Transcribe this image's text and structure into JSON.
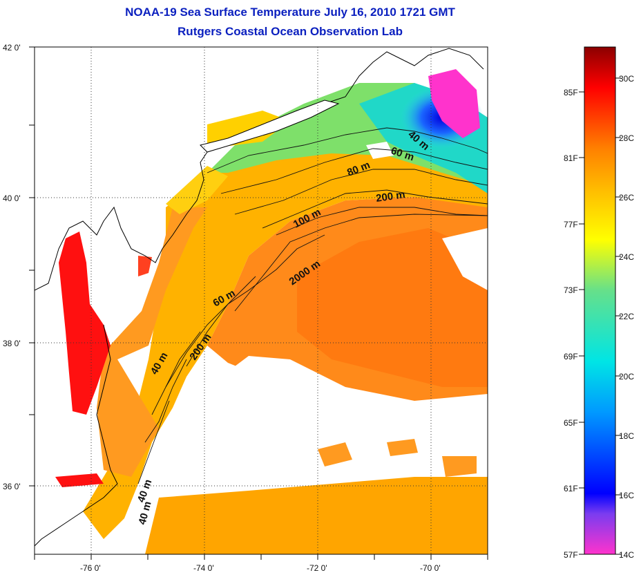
{
  "title": "NOAA-19 Sea Surface Temperature July 16, 2010 1721 GMT",
  "subtitle": "Rutgers Coastal Ocean Observation Lab",
  "map": {
    "lat_ticks": [
      "42 0'",
      "40 0'",
      "38 0'",
      "36 0'"
    ],
    "lon_ticks": [
      "-76 0'",
      "-74 0'",
      "-72 0'",
      "-70 0'"
    ],
    "contours": [
      "40 m",
      "60 m",
      "80 m",
      "200 m",
      "100 m",
      "2000 m",
      "60 m",
      "200 m",
      "40 m",
      "40 m",
      "40 m"
    ]
  },
  "colorbar": {
    "fahrenheit": [
      "85F",
      "81F",
      "77F",
      "73F",
      "69F",
      "65F",
      "61F",
      "57F"
    ],
    "celsius": [
      "30C",
      "28C",
      "26C",
      "24C",
      "22C",
      "20C",
      "18C",
      "16C",
      "14C"
    ],
    "colors": [
      "#ff33cc",
      "#7a3cf0",
      "#0000ff",
      "#0099ff",
      "#00e5e5",
      "#66e08a",
      "#ffff00",
      "#ffbb00",
      "#ff8000",
      "#ff0000",
      "#8b0000"
    ]
  }
}
